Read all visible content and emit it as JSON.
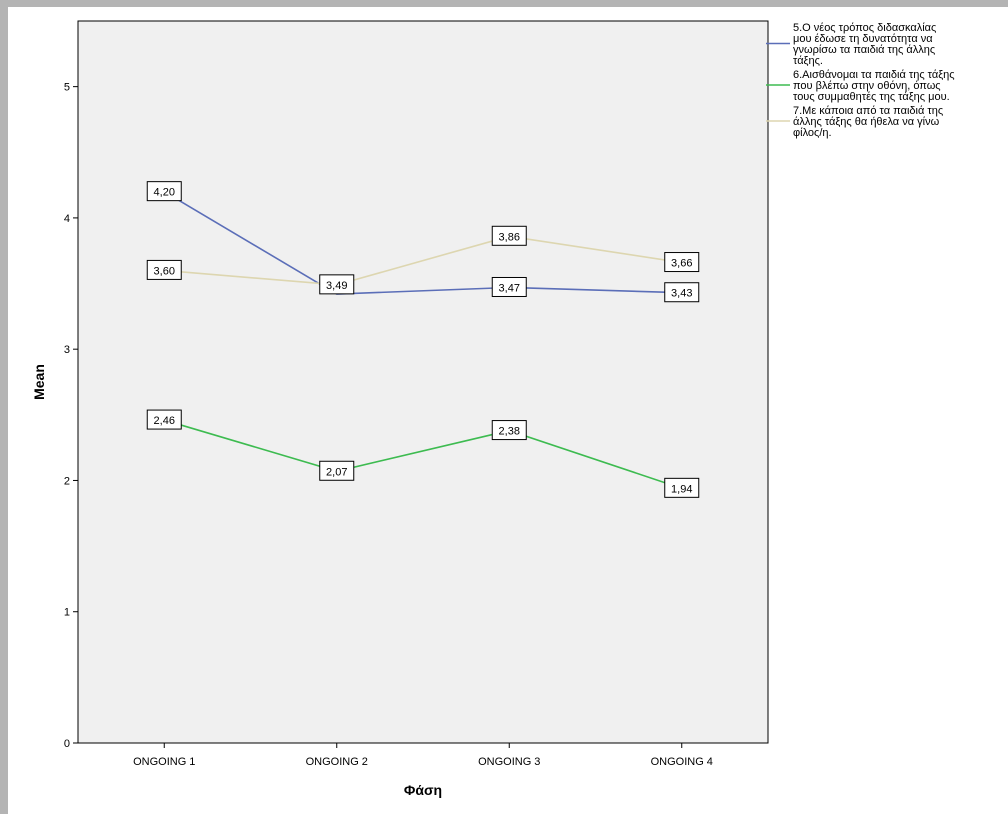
{
  "chart_data": {
    "type": "line",
    "title": "",
    "xlabel": "Φάση",
    "ylabel": "Mean",
    "categories": [
      "ONGOING 1",
      "ONGOING 2",
      "ONGOING 3",
      "ONGOING 4"
    ],
    "ylim": [
      0,
      5.5
    ],
    "yticks": [
      0,
      1,
      2,
      3,
      4,
      5
    ],
    "grid": false,
    "legend_position": "right",
    "background_color": "#f0f0f0",
    "series": [
      {
        "name": "5.Ο νέος τρόπος διδασκαλίας μου έδωσε τη δυνατότητα να γνωρίσω τα παιδιά της άλλης τάξης.",
        "legend_lines": [
          "5.Ο νέος τρόπος διδασκαλίας",
          "μου έδωσε τη δυνατότητα να",
          "γνωρίσω τα παιδιά της άλλης",
          "τάξης."
        ],
        "color": "#5b6eb8",
        "values": [
          4.2,
          3.42,
          3.47,
          3.43
        ],
        "labels": [
          "4,20",
          null,
          "3,47",
          "3,43"
        ]
      },
      {
        "name": "6.Αισθάνομαι τα παιδιά της τάξης που βλέπω στην οθόνη, όπως τους συμμαθητές της τάξης μου.",
        "legend_lines": [
          "6.Αισθάνομαι τα παιδιά της τάξης",
          "που βλέπω στην οθόνη, όπως",
          "τους συμμαθητές της τάξης μου."
        ],
        "color": "#3dbb50",
        "values": [
          2.46,
          2.07,
          2.38,
          1.94
        ],
        "labels": [
          "2,46",
          "2,07",
          "2,38",
          "1,94"
        ]
      },
      {
        "name": "7.Με κάποια από τα παιδιά της άλλης τάξης θα ήθελα να γίνω φίλος/η.",
        "legend_lines": [
          "7.Με κάποια από τα παιδιά της",
          "άλλης τάξης θα ήθελα να γίνω",
          "φίλος/η."
        ],
        "color": "#ddd6b0",
        "values": [
          3.6,
          3.49,
          3.86,
          3.66
        ],
        "labels": [
          "3,60",
          "3,49",
          "3,86",
          "3,66"
        ]
      }
    ]
  }
}
